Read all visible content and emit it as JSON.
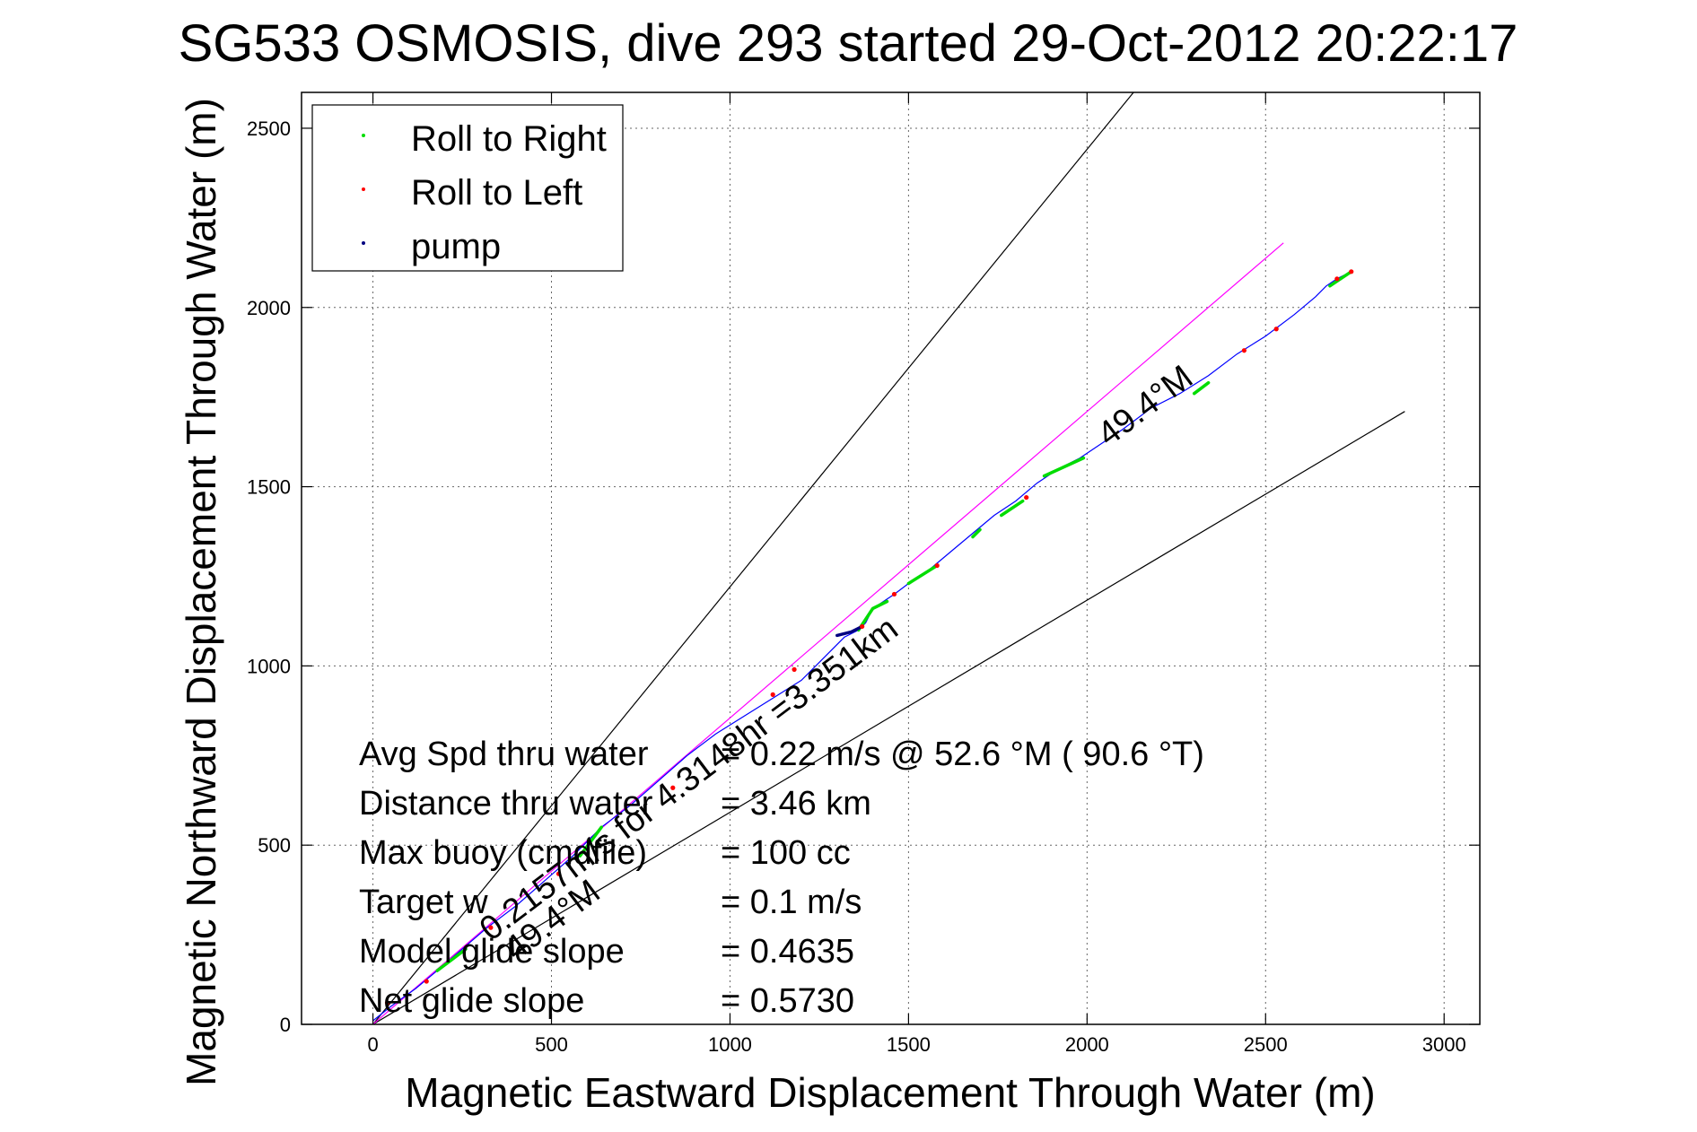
{
  "chart_data": {
    "type": "line",
    "title": "SG533 OSMOSIS, dive 293 started 29-Oct-2012 20:22:17",
    "xlabel": "Magnetic Eastward Displacement Through Water (m)",
    "ylabel": "Magnetic Northward Displacement Through Water (m)",
    "xlim": [
      -200,
      3100
    ],
    "ylim": [
      0,
      2600
    ],
    "xticks": [
      0,
      500,
      1000,
      1500,
      2000,
      2500,
      3000
    ],
    "yticks": [
      0,
      500,
      1000,
      1500,
      2000,
      2500
    ],
    "xtick_labels": [
      "0",
      "500",
      "1000",
      "1500",
      "2000",
      "2500",
      "3000"
    ],
    "ytick_labels": [
      "0",
      "500",
      "1000",
      "1500",
      "2000",
      "2500"
    ],
    "grid": true,
    "legend_position": "top-left",
    "legend": [
      {
        "label": "Roll to Right",
        "color": "#00dd00"
      },
      {
        "label": "Roll to Left",
        "color": "#ff0000"
      },
      {
        "label": "pump",
        "color": "#000080"
      }
    ],
    "track": {
      "color": "#0000ff",
      "x": [
        0,
        50,
        120,
        180,
        250,
        320,
        400,
        480,
        560,
        640,
        720,
        800,
        880,
        960,
        1040,
        1120,
        1200,
        1260,
        1320,
        1360,
        1380,
        1400,
        1430,
        1460,
        1500,
        1560,
        1620,
        1680,
        1740,
        1800,
        1860,
        1920,
        1980,
        2040,
        2100,
        2180,
        2260,
        2340,
        2420,
        2500,
        2580,
        2640,
        2670,
        2700,
        2740
      ],
      "y": [
        10,
        50,
        100,
        150,
        210,
        270,
        330,
        400,
        470,
        550,
        610,
        680,
        750,
        810,
        860,
        910,
        960,
        1020,
        1080,
        1100,
        1120,
        1160,
        1180,
        1200,
        1230,
        1270,
        1320,
        1370,
        1420,
        1460,
        1510,
        1550,
        1580,
        1620,
        1660,
        1720,
        1760,
        1810,
        1870,
        1920,
        1980,
        2030,
        2060,
        2080,
        2100
      ]
    },
    "roll_right_segments": [
      {
        "x": [
          1360,
          1400,
          1440
        ],
        "y": [
          1100,
          1160,
          1180
        ]
      },
      {
        "x": [
          1500,
          1580
        ],
        "y": [
          1230,
          1280
        ]
      },
      {
        "x": [
          1680,
          1700
        ],
        "y": [
          1360,
          1380
        ]
      },
      {
        "x": [
          1760,
          1820
        ],
        "y": [
          1420,
          1460
        ]
      },
      {
        "x": [
          1880,
          1990
        ],
        "y": [
          1530,
          1580
        ]
      },
      {
        "x": [
          2300,
          2340
        ],
        "y": [
          1760,
          1790
        ]
      },
      {
        "x": [
          2680,
          2740
        ],
        "y": [
          2060,
          2100
        ]
      },
      {
        "x": [
          180,
          260
        ],
        "y": [
          150,
          210
        ]
      },
      {
        "x": [
          580,
          640
        ],
        "y": [
          470,
          550
        ]
      }
    ],
    "roll_left_points": {
      "x": [
        40,
        150,
        330,
        520,
        840,
        1120,
        1180,
        1370,
        1460,
        1580,
        1830,
        2440,
        2530,
        2700,
        2740
      ],
      "y": [
        60,
        120,
        270,
        420,
        660,
        920,
        990,
        1110,
        1200,
        1280,
        1470,
        1880,
        1940,
        2080,
        2100
      ]
    },
    "pump_segment": {
      "x": [
        1300,
        1340,
        1370
      ],
      "y": [
        1085,
        1095,
        1110
      ]
    },
    "bounds_lines": [
      {
        "color": "#000000",
        "x": [
          0,
          2130
        ],
        "y": [
          0,
          2600
        ]
      },
      {
        "color": "#000000",
        "x": [
          0,
          2890
        ],
        "y": [
          0,
          1710
        ]
      }
    ],
    "heading_line": {
      "color": "#ff00ff",
      "x": [
        0,
        2550
      ],
      "y": [
        0,
        2180
      ]
    },
    "annotations": [
      {
        "text": "49.4°M",
        "x": 2060,
        "y": 1610,
        "angle": 37
      },
      {
        "text": "0.2157m/s for 4.3148hr =3.351km",
        "x": 330,
        "y": 230,
        "angle": 37
      },
      {
        "text": "49.4°M",
        "x": 400,
        "y": 175,
        "angle": 37
      }
    ],
    "stats": [
      {
        "label": "Avg Spd thru water",
        "value": "=  0.22 m/s @  52.6 °M ( 90.6 °T)"
      },
      {
        "label": "Distance thru water",
        "value": "=  3.46 km"
      },
      {
        "label": "Max buoy (cmdfile)",
        "value": "= 100 cc"
      },
      {
        "label": "Target w",
        "value": "= 0.1 m/s"
      },
      {
        "label": "Model glide slope",
        "value": "= 0.4635"
      },
      {
        "label": "Net glide slope",
        "value": "= 0.5730"
      }
    ]
  }
}
